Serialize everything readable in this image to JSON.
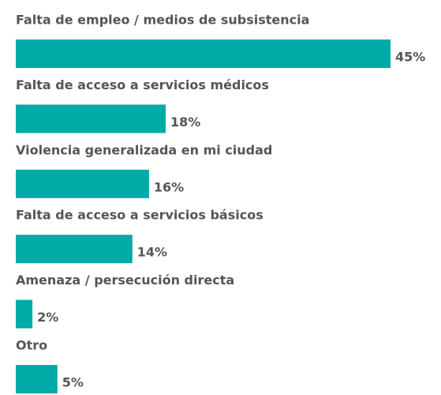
{
  "chart_data": {
    "type": "bar",
    "orientation": "horizontal",
    "categories": [
      "Falta de empleo / medios de subsistencia",
      "Falta de acceso a servicios médicos",
      "Violencia generalizada en mi ciudad",
      "Falta de acceso a servicios básicos",
      "Amenaza / persecución directa",
      "Otro"
    ],
    "values": [
      45,
      18,
      16,
      14,
      2,
      5
    ],
    "value_labels": [
      "45%",
      "18%",
      "16%",
      "14%",
      "2%",
      "5%"
    ],
    "color": "#00aaa6"
  }
}
